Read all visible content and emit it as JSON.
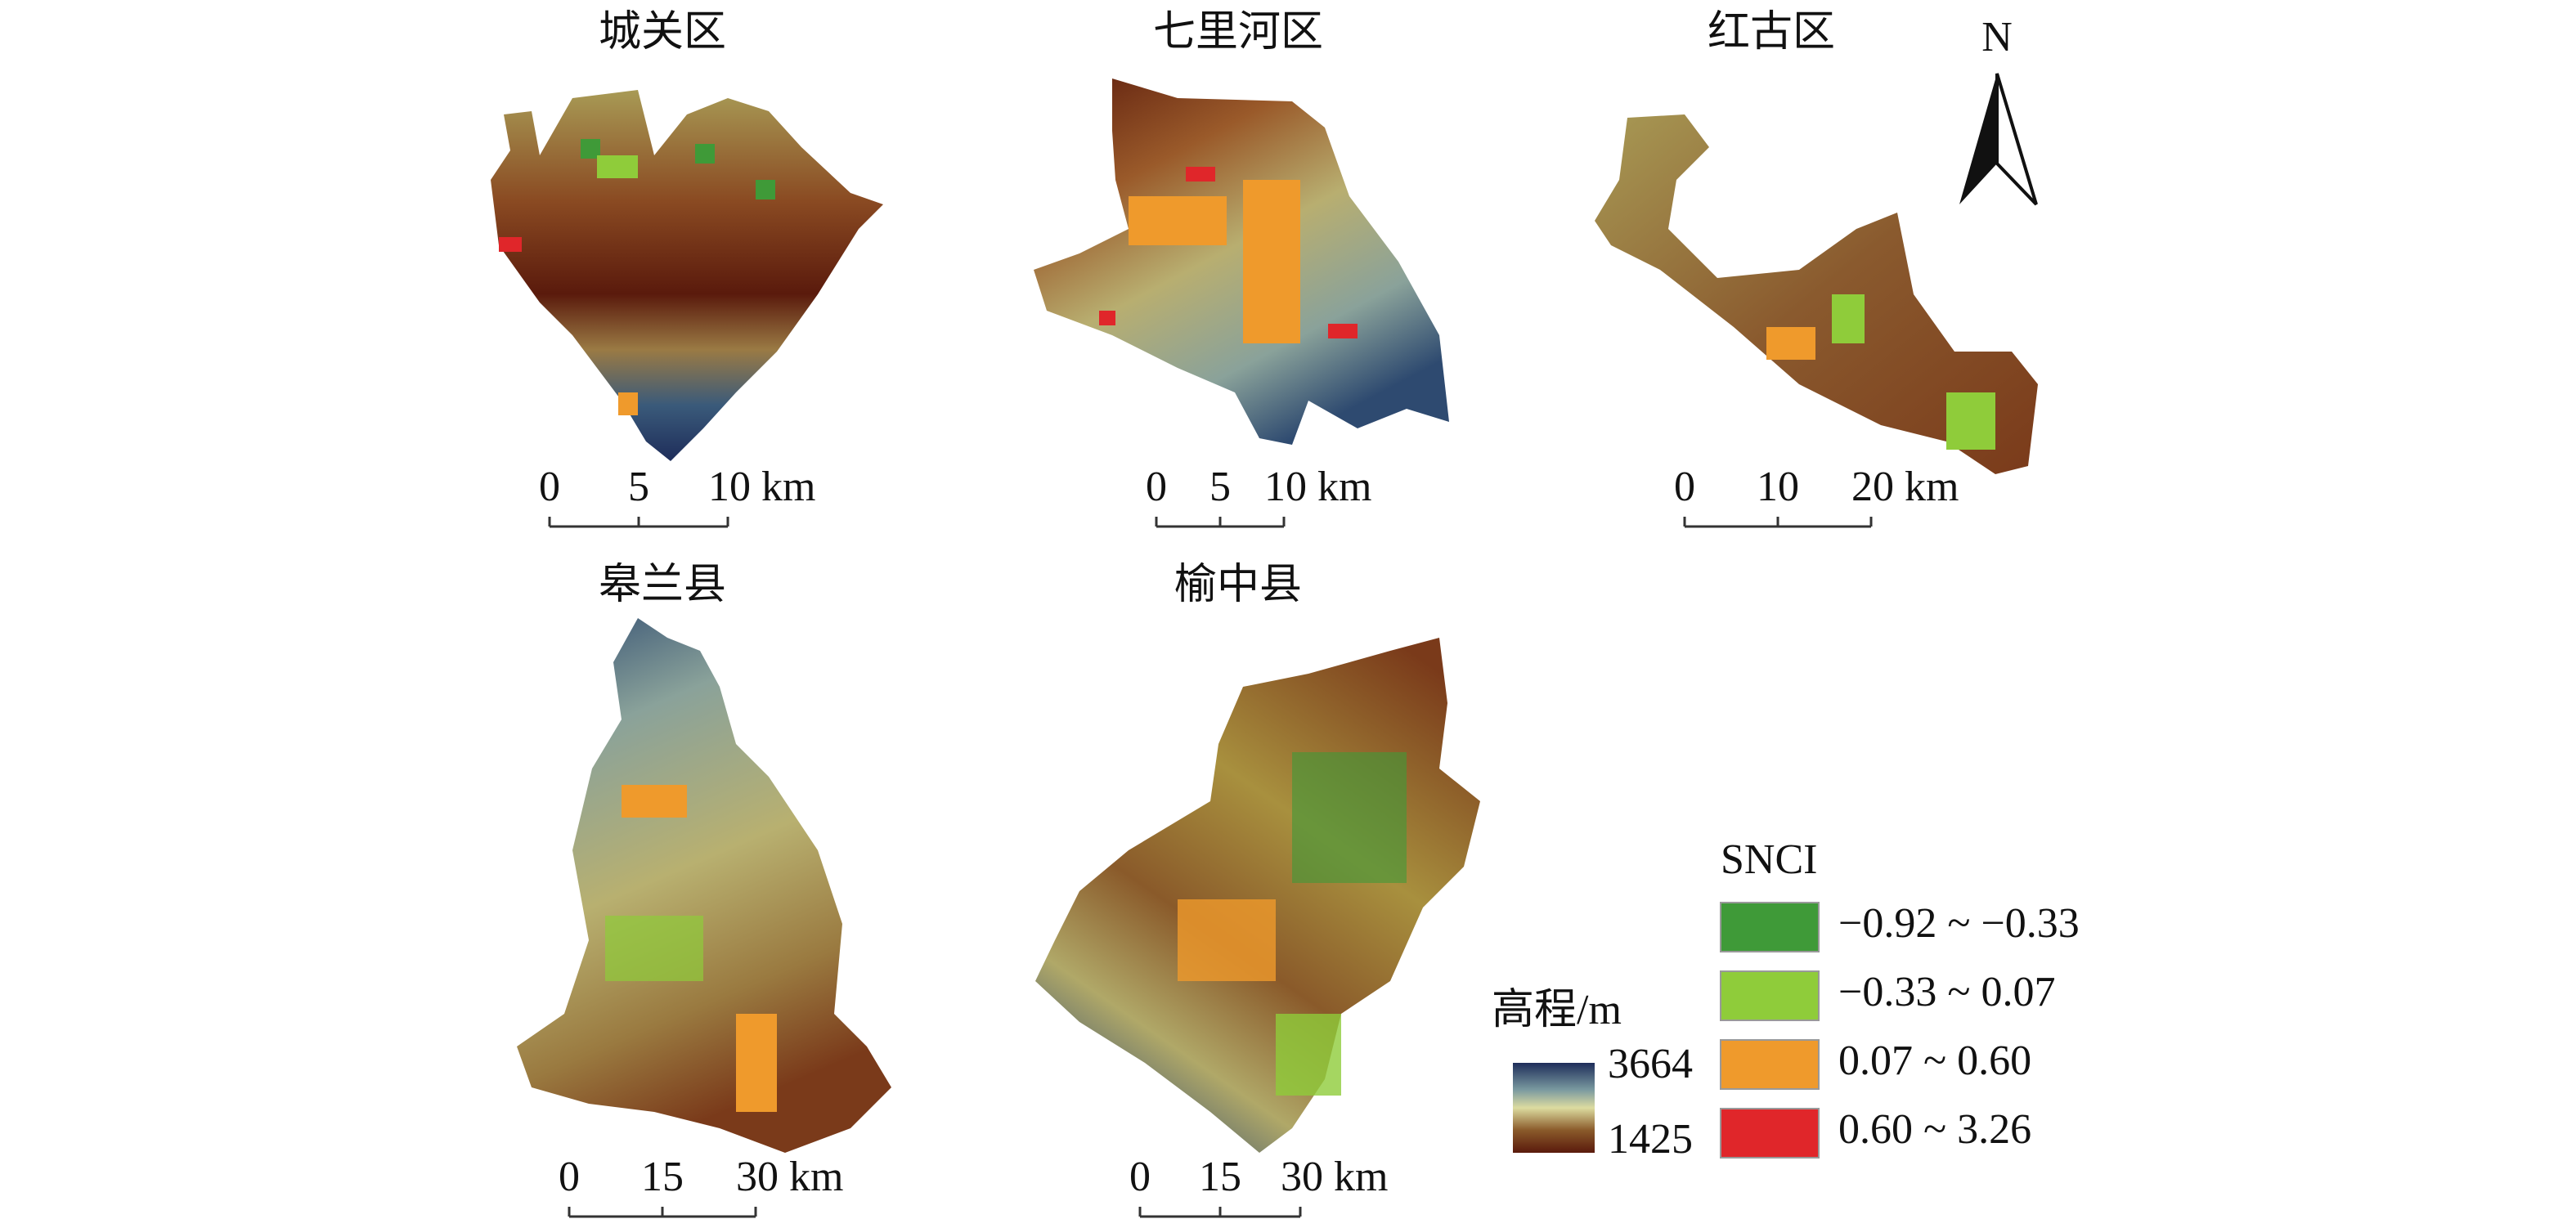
{
  "panels": [
    {
      "title": "城关区",
      "scale": [
        "0",
        "5",
        "10 km"
      ]
    },
    {
      "title": "七里河区",
      "scale": [
        "0",
        "5",
        "10 km"
      ]
    },
    {
      "title": "红古区",
      "scale": [
        "0",
        "10",
        "20 km"
      ]
    },
    {
      "title": "皋兰县",
      "scale": [
        "0",
        "15",
        "30 km"
      ]
    },
    {
      "title": "榆中县",
      "scale": [
        "0",
        "15",
        "30 km"
      ]
    }
  ],
  "north": "N",
  "elevation_legend": {
    "title": "高程/m",
    "max": 3664,
    "min": 1425
  },
  "snci_legend": {
    "title": "SNCI",
    "items": [
      {
        "label": "−0.92 ~ −0.33",
        "color": "#3f9a38"
      },
      {
        "label": "−0.33 ~ 0.07",
        "color": "#8fcc3a"
      },
      {
        "label": "0.07 ~ 0.60",
        "color": "#ef9a2c"
      },
      {
        "label": "0.60 ~ 3.26",
        "color": "#e0262a"
      }
    ]
  }
}
